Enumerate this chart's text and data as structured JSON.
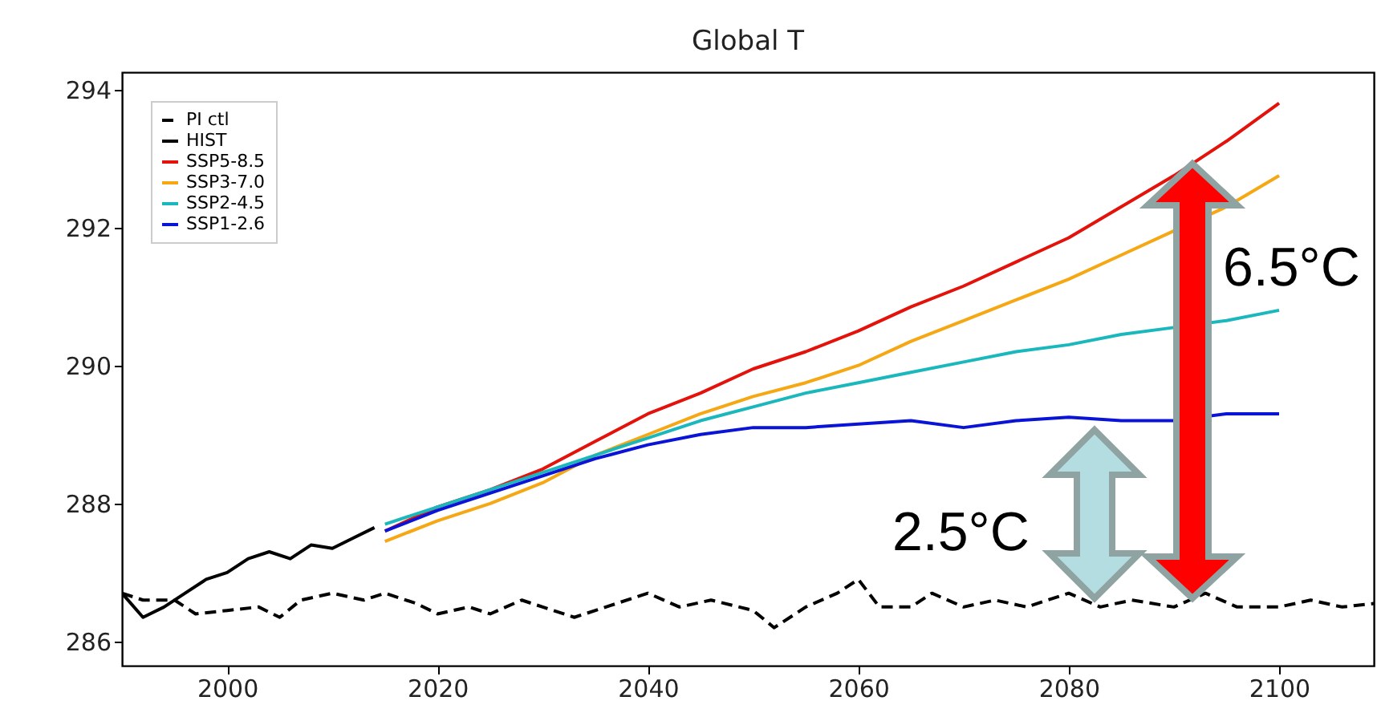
{
  "chart_data": {
    "type": "line",
    "title": "Global T",
    "xlim": [
      1990,
      2109
    ],
    "ylim": [
      285.65,
      294.25
    ],
    "xticks": [
      2000,
      2020,
      2040,
      2060,
      2080,
      2100
    ],
    "yticks": [
      286,
      288,
      290,
      292,
      294
    ],
    "grid": false,
    "legend": "top left",
    "series": [
      {
        "name": "PI ctl",
        "color": "#000000",
        "line_style": "dashed",
        "x": [
          1990,
          1992,
          1995,
          1997,
          2000,
          2003,
          2005,
          2007,
          2010,
          2013,
          2015,
          2018,
          2020,
          2023,
          2025,
          2028,
          2030,
          2033,
          2036,
          2040,
          2043,
          2046,
          2050,
          2052,
          2055,
          2058,
          2060,
          2062,
          2065,
          2067,
          2070,
          2073,
          2076,
          2080,
          2083,
          2086,
          2090,
          2093,
          2096,
          2100,
          2103,
          2106,
          2109
        ],
        "values": [
          286.7,
          286.6,
          286.6,
          286.4,
          286.45,
          286.5,
          286.35,
          286.6,
          286.7,
          286.6,
          286.7,
          286.55,
          286.4,
          286.5,
          286.4,
          286.6,
          286.5,
          286.35,
          286.5,
          286.7,
          286.5,
          286.6,
          286.45,
          286.2,
          286.5,
          286.7,
          286.9,
          286.5,
          286.5,
          286.7,
          286.5,
          286.6,
          286.5,
          286.7,
          286.5,
          286.6,
          286.5,
          286.7,
          286.5,
          286.5,
          286.6,
          286.5,
          286.55
        ]
      },
      {
        "name": "HIST",
        "color": "#000000",
        "line_style": "solid",
        "x": [
          1990,
          1992,
          1994,
          1996,
          1998,
          2000,
          2002,
          2004,
          2006,
          2008,
          2010,
          2012,
          2014
        ],
        "values": [
          286.7,
          286.35,
          286.5,
          286.7,
          286.9,
          287.0,
          287.2,
          287.3,
          287.2,
          287.4,
          287.35,
          287.5,
          287.65
        ]
      },
      {
        "name": "SSP5-8.5",
        "color": "#e3120b",
        "line_style": "solid",
        "x": [
          2015,
          2020,
          2025,
          2030,
          2035,
          2040,
          2045,
          2050,
          2055,
          2060,
          2065,
          2070,
          2075,
          2080,
          2085,
          2090,
          2095,
          2100
        ],
        "values": [
          287.6,
          287.95,
          288.2,
          288.5,
          288.9,
          289.3,
          289.6,
          289.95,
          290.2,
          290.5,
          290.85,
          291.15,
          291.5,
          291.85,
          292.3,
          292.75,
          293.25,
          293.8
        ]
      },
      {
        "name": "SSP3-7.0",
        "color": "#f5a714",
        "line_style": "solid",
        "x": [
          2015,
          2020,
          2025,
          2030,
          2035,
          2040,
          2045,
          2050,
          2055,
          2060,
          2065,
          2070,
          2075,
          2080,
          2085,
          2090,
          2095,
          2100
        ],
        "values": [
          287.45,
          287.75,
          288.0,
          288.3,
          288.7,
          289.0,
          289.3,
          289.55,
          289.75,
          290.0,
          290.35,
          290.65,
          290.95,
          291.25,
          291.6,
          291.95,
          292.3,
          292.75
        ]
      },
      {
        "name": "SSP2-4.5",
        "color": "#1ab8bd",
        "line_style": "solid",
        "x": [
          2015,
          2020,
          2025,
          2030,
          2035,
          2040,
          2045,
          2050,
          2055,
          2060,
          2065,
          2070,
          2075,
          2080,
          2085,
          2090,
          2095,
          2100
        ],
        "values": [
          287.7,
          287.95,
          288.2,
          288.45,
          288.7,
          288.95,
          289.2,
          289.4,
          289.6,
          289.75,
          289.9,
          290.05,
          290.2,
          290.3,
          290.45,
          290.55,
          290.65,
          290.8
        ]
      },
      {
        "name": "SSP1-2.6",
        "color": "#0a14d6",
        "line_style": "solid",
        "x": [
          2015,
          2020,
          2025,
          2030,
          2035,
          2040,
          2045,
          2050,
          2055,
          2060,
          2065,
          2070,
          2075,
          2080,
          2085,
          2090,
          2095,
          2100
        ],
        "values": [
          287.6,
          287.9,
          288.15,
          288.4,
          288.65,
          288.85,
          289.0,
          289.1,
          289.1,
          289.15,
          289.2,
          289.1,
          289.2,
          289.25,
          289.2,
          289.2,
          289.3,
          289.3
        ]
      }
    ],
    "annotations": [
      "6.5°C",
      "2.5°C"
    ]
  }
}
